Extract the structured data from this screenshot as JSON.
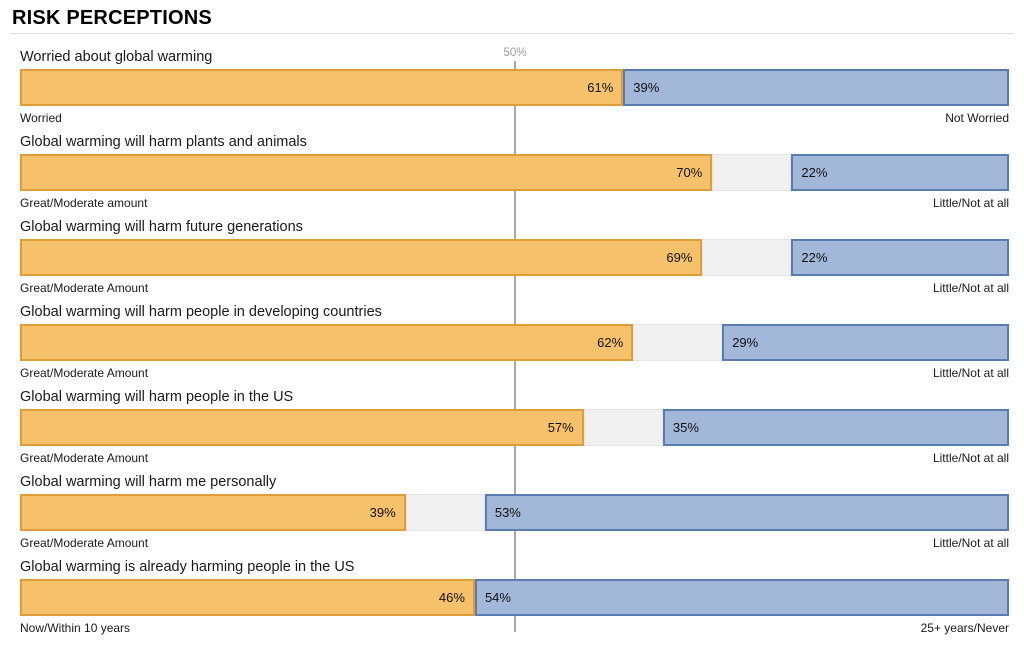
{
  "header": {
    "title": "RISK PERCEPTIONS"
  },
  "colors": {
    "left_fill": "#F5C26B",
    "left_border": "#DE9D38",
    "right_fill": "#A3B7D8",
    "right_border": "#5B7CB0",
    "neutral_fill": "#F1F1F1",
    "neutral_border": "#E5E5E5",
    "gridline": "#A8A8A8",
    "gridline_label": "#9E9E9E"
  },
  "chart_data": {
    "type": "bar",
    "subtype": "diverging-stacked-horizontal",
    "title": "RISK PERCEPTIONS",
    "unit": "percent",
    "axis": {
      "min": 0,
      "max": 100,
      "gridline_pct": 50,
      "gridline_label": "50%"
    },
    "grid": "single vertical line at 50%",
    "legend": "none",
    "rows": [
      {
        "question": "Worried about global warming",
        "left": {
          "value": 61,
          "label": "61%",
          "axis_label": "Worried"
        },
        "right": {
          "value": 39,
          "label": "39%",
          "axis_label": "Not Worried"
        },
        "neutral_value": 0
      },
      {
        "question": "Global warming will harm plants and animals",
        "left": {
          "value": 70,
          "label": "70%",
          "axis_label": "Great/Moderate amount"
        },
        "right": {
          "value": 22,
          "label": "22%",
          "axis_label": "Little/Not at all"
        },
        "neutral_value": 8
      },
      {
        "question": "Global warming will harm future generations",
        "left": {
          "value": 69,
          "label": "69%",
          "axis_label": "Great/Moderate Amount"
        },
        "right": {
          "value": 22,
          "label": "22%",
          "axis_label": "Little/Not at all"
        },
        "neutral_value": 9
      },
      {
        "question": "Global warming will harm people in developing countries",
        "left": {
          "value": 62,
          "label": "62%",
          "axis_label": "Great/Moderate Amount"
        },
        "right": {
          "value": 29,
          "label": "29%",
          "axis_label": "Little/Not at all"
        },
        "neutral_value": 9
      },
      {
        "question": "Global warming will harm people in the US",
        "left": {
          "value": 57,
          "label": "57%",
          "axis_label": "Great/Moderate Amount"
        },
        "right": {
          "value": 35,
          "label": "35%",
          "axis_label": "Little/Not at all"
        },
        "neutral_value": 8
      },
      {
        "question": "Global warming will harm me personally",
        "left": {
          "value": 39,
          "label": "39%",
          "axis_label": "Great/Moderate Amount"
        },
        "right": {
          "value": 53,
          "label": "53%",
          "axis_label": "Little/Not at all"
        },
        "neutral_value": 8
      },
      {
        "question": "Global warming is already harming people in the US",
        "left": {
          "value": 46,
          "label": "46%",
          "axis_label": "Now/Within 10 years"
        },
        "right": {
          "value": 54,
          "label": "54%",
          "axis_label": "25+ years/Never"
        },
        "neutral_value": 0
      }
    ]
  }
}
